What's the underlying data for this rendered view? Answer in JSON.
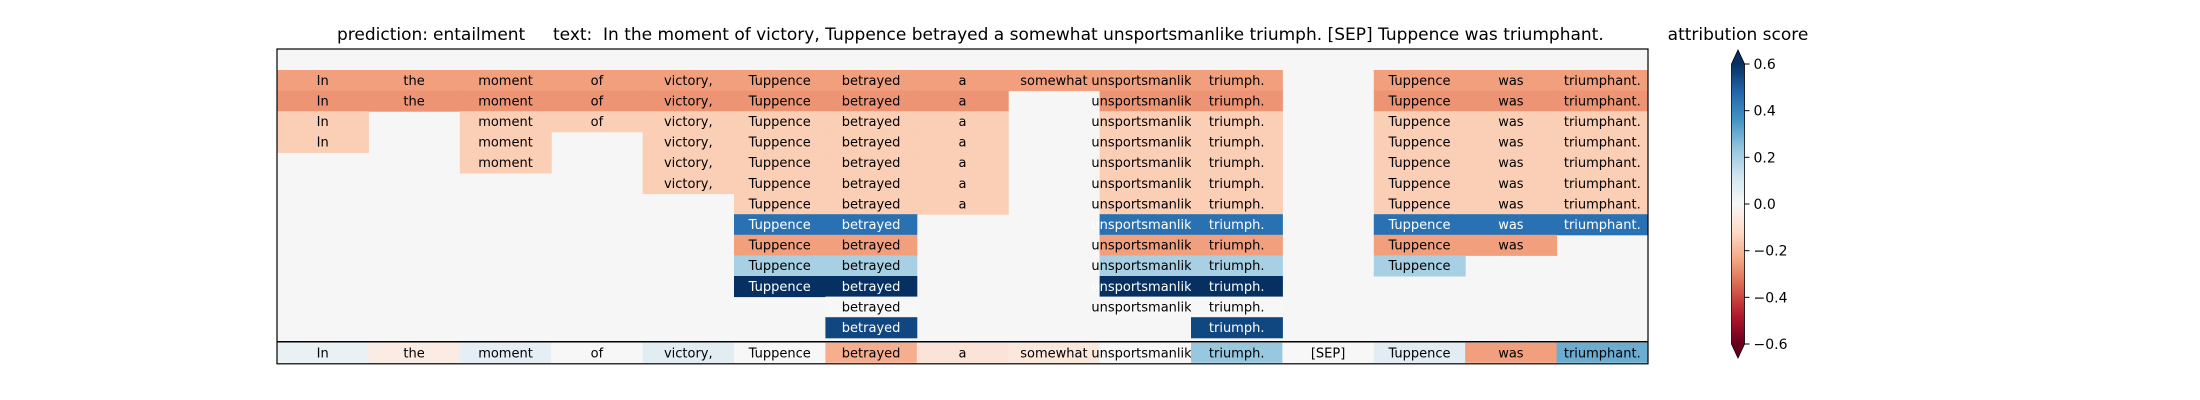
{
  "header": {
    "prediction_label": "prediction:",
    "prediction_value": "entailment",
    "text_label": "text:",
    "text_value": "In the moment of victory, Tuppence betrayed a somewhat unsportsmanlike triumph. [SEP] Tuppence was triumphant."
  },
  "chart_data": {
    "type": "heatmap",
    "title": "prediction:  entailment     text:  In the moment of victory, Tuppence betrayed a somewhat unsportsmanlike triumph. [SEP] Tuppence was triumphant.",
    "tokens": [
      "In",
      "the",
      "moment",
      "of",
      "victory,",
      "Tuppence",
      "betrayed",
      "a",
      "somewhat",
      "unsportsmanlike",
      "triumph.",
      "[SEP]",
      "Tuppence",
      "was",
      "triumphant."
    ],
    "rows": [
      [
        -0.25,
        -0.25,
        -0.25,
        -0.25,
        -0.25,
        -0.25,
        -0.25,
        -0.25,
        -0.25,
        -0.25,
        -0.25,
        null,
        -0.25,
        -0.25,
        -0.25
      ],
      [
        -0.27,
        -0.27,
        -0.27,
        -0.27,
        -0.27,
        -0.27,
        -0.27,
        -0.27,
        null,
        -0.27,
        -0.27,
        null,
        -0.27,
        -0.27,
        -0.27
      ],
      [
        -0.15,
        null,
        -0.15,
        -0.15,
        -0.15,
        -0.15,
        -0.15,
        -0.15,
        null,
        -0.15,
        -0.15,
        null,
        -0.15,
        -0.15,
        -0.15
      ],
      [
        -0.15,
        null,
        -0.15,
        null,
        -0.15,
        -0.15,
        -0.15,
        -0.15,
        null,
        -0.15,
        -0.15,
        null,
        -0.15,
        -0.15,
        -0.15
      ],
      [
        null,
        null,
        -0.15,
        null,
        -0.15,
        -0.15,
        -0.15,
        -0.15,
        null,
        -0.15,
        -0.15,
        null,
        -0.15,
        -0.15,
        -0.15
      ],
      [
        null,
        null,
        null,
        null,
        -0.15,
        -0.15,
        -0.15,
        -0.15,
        null,
        -0.15,
        -0.15,
        null,
        -0.15,
        -0.15,
        -0.15
      ],
      [
        null,
        null,
        null,
        null,
        null,
        -0.15,
        -0.15,
        -0.15,
        null,
        -0.15,
        -0.15,
        null,
        -0.15,
        -0.15,
        -0.15
      ],
      [
        null,
        null,
        null,
        null,
        null,
        0.45,
        0.45,
        null,
        null,
        0.45,
        0.45,
        null,
        0.45,
        0.45,
        0.45
      ],
      [
        null,
        null,
        null,
        null,
        null,
        -0.25,
        -0.25,
        null,
        null,
        -0.25,
        -0.25,
        null,
        -0.25,
        -0.25,
        null
      ],
      [
        null,
        null,
        null,
        null,
        null,
        0.2,
        0.2,
        null,
        null,
        0.2,
        0.2,
        null,
        0.2,
        null,
        null
      ],
      [
        null,
        null,
        null,
        null,
        null,
        0.65,
        0.65,
        null,
        null,
        0.65,
        0.65,
        null,
        null,
        null,
        null
      ],
      [
        null,
        null,
        null,
        null,
        null,
        null,
        0.0,
        null,
        null,
        0.0,
        0.0,
        null,
        null,
        null,
        null
      ],
      [
        null,
        null,
        null,
        null,
        null,
        null,
        0.55,
        null,
        null,
        null,
        0.55,
        null,
        null,
        null,
        null
      ]
    ],
    "bottom_row": [
      0.04,
      -0.05,
      0.06,
      0.0,
      0.07,
      0.0,
      -0.22,
      -0.08,
      -0.07,
      0.0,
      0.23,
      0.0,
      0.07,
      -0.25,
      0.3
    ],
    "colorbar": {
      "label": "attribution score",
      "min": -0.6,
      "max": 0.6,
      "ticks": [
        0.6,
        0.4,
        0.2,
        0.0,
        -0.2,
        -0.4,
        -0.6
      ],
      "tick_labels": [
        "0.6",
        "0.4",
        "0.2",
        "0.0",
        "−0.2",
        "−0.4",
        "−0.6"
      ],
      "colormap": "RdBu"
    },
    "empty_color": "#f5f6f5"
  }
}
